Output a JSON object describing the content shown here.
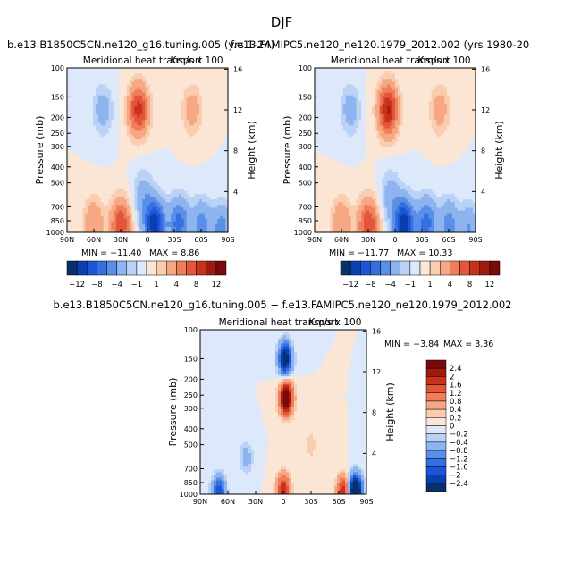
{
  "figure": {
    "title": "DJF",
    "panel_a_title": "b.e13.B1850C5CN.ne120_g16.tuning.005 (yrs 1-24)",
    "panel_b_title": "f.e13.FAMIPC5.ne120_ne120.1979_2012.002 (yrs 1980-20",
    "panel_c_title": "b.e13.B1850C5CN.ne120_g16.tuning.005 − f.e13.FAMIPC5.ne120_ne120.1979_2012.002"
  },
  "colors": {
    "diverging_scale": [
      "#08306b",
      "#0a3fb0",
      "#1a55d9",
      "#3470e0",
      "#5a8fe8",
      "#8db4ef",
      "#b9d2f5",
      "#dde9fa",
      "#fbe6d6",
      "#f9cdb0",
      "#f5a883",
      "#ee7e5a",
      "#e4553a",
      "#c8321c",
      "#a01a10",
      "#7a0a0a"
    ]
  },
  "chart_data": [
    {
      "type": "heatmap",
      "subtitle": "Meridional heat transport",
      "units": "Km/s x 100",
      "ylabel": "Pressure (mb)",
      "ylabel_right": "Height (km)",
      "x_ticks": [
        "90N",
        "60N",
        "30N",
        "0",
        "30S",
        "60S",
        "90S"
      ],
      "y_ticks": [
        100,
        150,
        200,
        250,
        300,
        400,
        500,
        700,
        850,
        1000
      ],
      "y_right_ticks": [
        16,
        12,
        8,
        4
      ],
      "min_label": "MIN = −11.40",
      "max_label": "MAX =    8.86",
      "colorbar_labels": [
        "−12",
        "−8",
        "−4",
        "−1",
        "1",
        "4",
        "8",
        "12"
      ],
      "features": [
        {
          "lat": -8,
          "p": 900,
          "value": -11.4
        },
        {
          "lat": -35,
          "p": 880,
          "value": -7.0
        },
        {
          "lat": -60,
          "p": 900,
          "value": -5.0
        },
        {
          "lat": -83,
          "p": 950,
          "value": -5.0
        },
        {
          "lat": 5,
          "p": 600,
          "value": -3.0
        },
        {
          "lat": 10,
          "p": 180,
          "value": 8.86
        },
        {
          "lat": 30,
          "p": 900,
          "value": 8.0
        },
        {
          "lat": 60,
          "p": 880,
          "value": 4.0
        },
        {
          "lat": -50,
          "p": 180,
          "value": 3.0
        },
        {
          "lat": 50,
          "p": 180,
          "value": -3.0
        }
      ]
    },
    {
      "type": "heatmap",
      "subtitle": "Meridional heat transport",
      "units": "Km/s x 100",
      "ylabel": "Pressure (mb)",
      "ylabel_right": "Height (km)",
      "x_ticks": [
        "90N",
        "60N",
        "30N",
        "0",
        "30S",
        "60S",
        "90S"
      ],
      "y_ticks": [
        100,
        150,
        200,
        250,
        300,
        400,
        500,
        700,
        850,
        1000
      ],
      "y_right_ticks": [
        16,
        12,
        8,
        4
      ],
      "min_label": "MIN = −11.77",
      "max_label": "MAX =   10.33",
      "colorbar_labels": [
        "−12",
        "−8",
        "−4",
        "−1",
        "1",
        "4",
        "8",
        "12"
      ],
      "features": [
        {
          "lat": -10,
          "p": 900,
          "value": -11.77
        },
        {
          "lat": -35,
          "p": 880,
          "value": -7.0
        },
        {
          "lat": -60,
          "p": 900,
          "value": -5.0
        },
        {
          "lat": -83,
          "p": 950,
          "value": -4.0
        },
        {
          "lat": 5,
          "p": 600,
          "value": -3.0
        },
        {
          "lat": 8,
          "p": 180,
          "value": 10.33
        },
        {
          "lat": 30,
          "p": 900,
          "value": 8.0
        },
        {
          "lat": 60,
          "p": 880,
          "value": 4.0
        },
        {
          "lat": -50,
          "p": 180,
          "value": 3.0
        },
        {
          "lat": 50,
          "p": 180,
          "value": -3.0
        }
      ]
    },
    {
      "type": "heatmap",
      "subtitle": "Meridional heat transport",
      "units": "Km/s x 100",
      "ylabel": "Pressure (mb)",
      "ylabel_right": "Height (km)",
      "x_ticks": [
        "90N",
        "60N",
        "30N",
        "0",
        "30S",
        "60S",
        "90S"
      ],
      "y_ticks": [
        100,
        150,
        200,
        250,
        300,
        400,
        500,
        700,
        850,
        1000
      ],
      "y_right_ticks": [
        16,
        12,
        8,
        4
      ],
      "min_label": "MIN =   −3.84",
      "max_label": "MAX =    3.36",
      "colorbar_labels": [
        "2.4",
        "2",
        "1.6",
        "1.2",
        "0.8",
        "0.4",
        "0.2",
        "0",
        "−0.2",
        "−0.4",
        "−0.8",
        "−1.2",
        "−1.6",
        "−2",
        "−2.4"
      ],
      "features": [
        {
          "lat": -2,
          "p": 150,
          "value": -3.0
        },
        {
          "lat": -3,
          "p": 260,
          "value": 3.36
        },
        {
          "lat": 0,
          "p": 950,
          "value": 2.0
        },
        {
          "lat": -65,
          "p": 970,
          "value": 2.0
        },
        {
          "lat": -78,
          "p": 950,
          "value": -3.84
        },
        {
          "lat": 70,
          "p": 970,
          "value": -2.0
        },
        {
          "lat": 40,
          "p": 600,
          "value": -0.6
        },
        {
          "lat": -30,
          "p": 500,
          "value": 0.3
        }
      ]
    }
  ]
}
